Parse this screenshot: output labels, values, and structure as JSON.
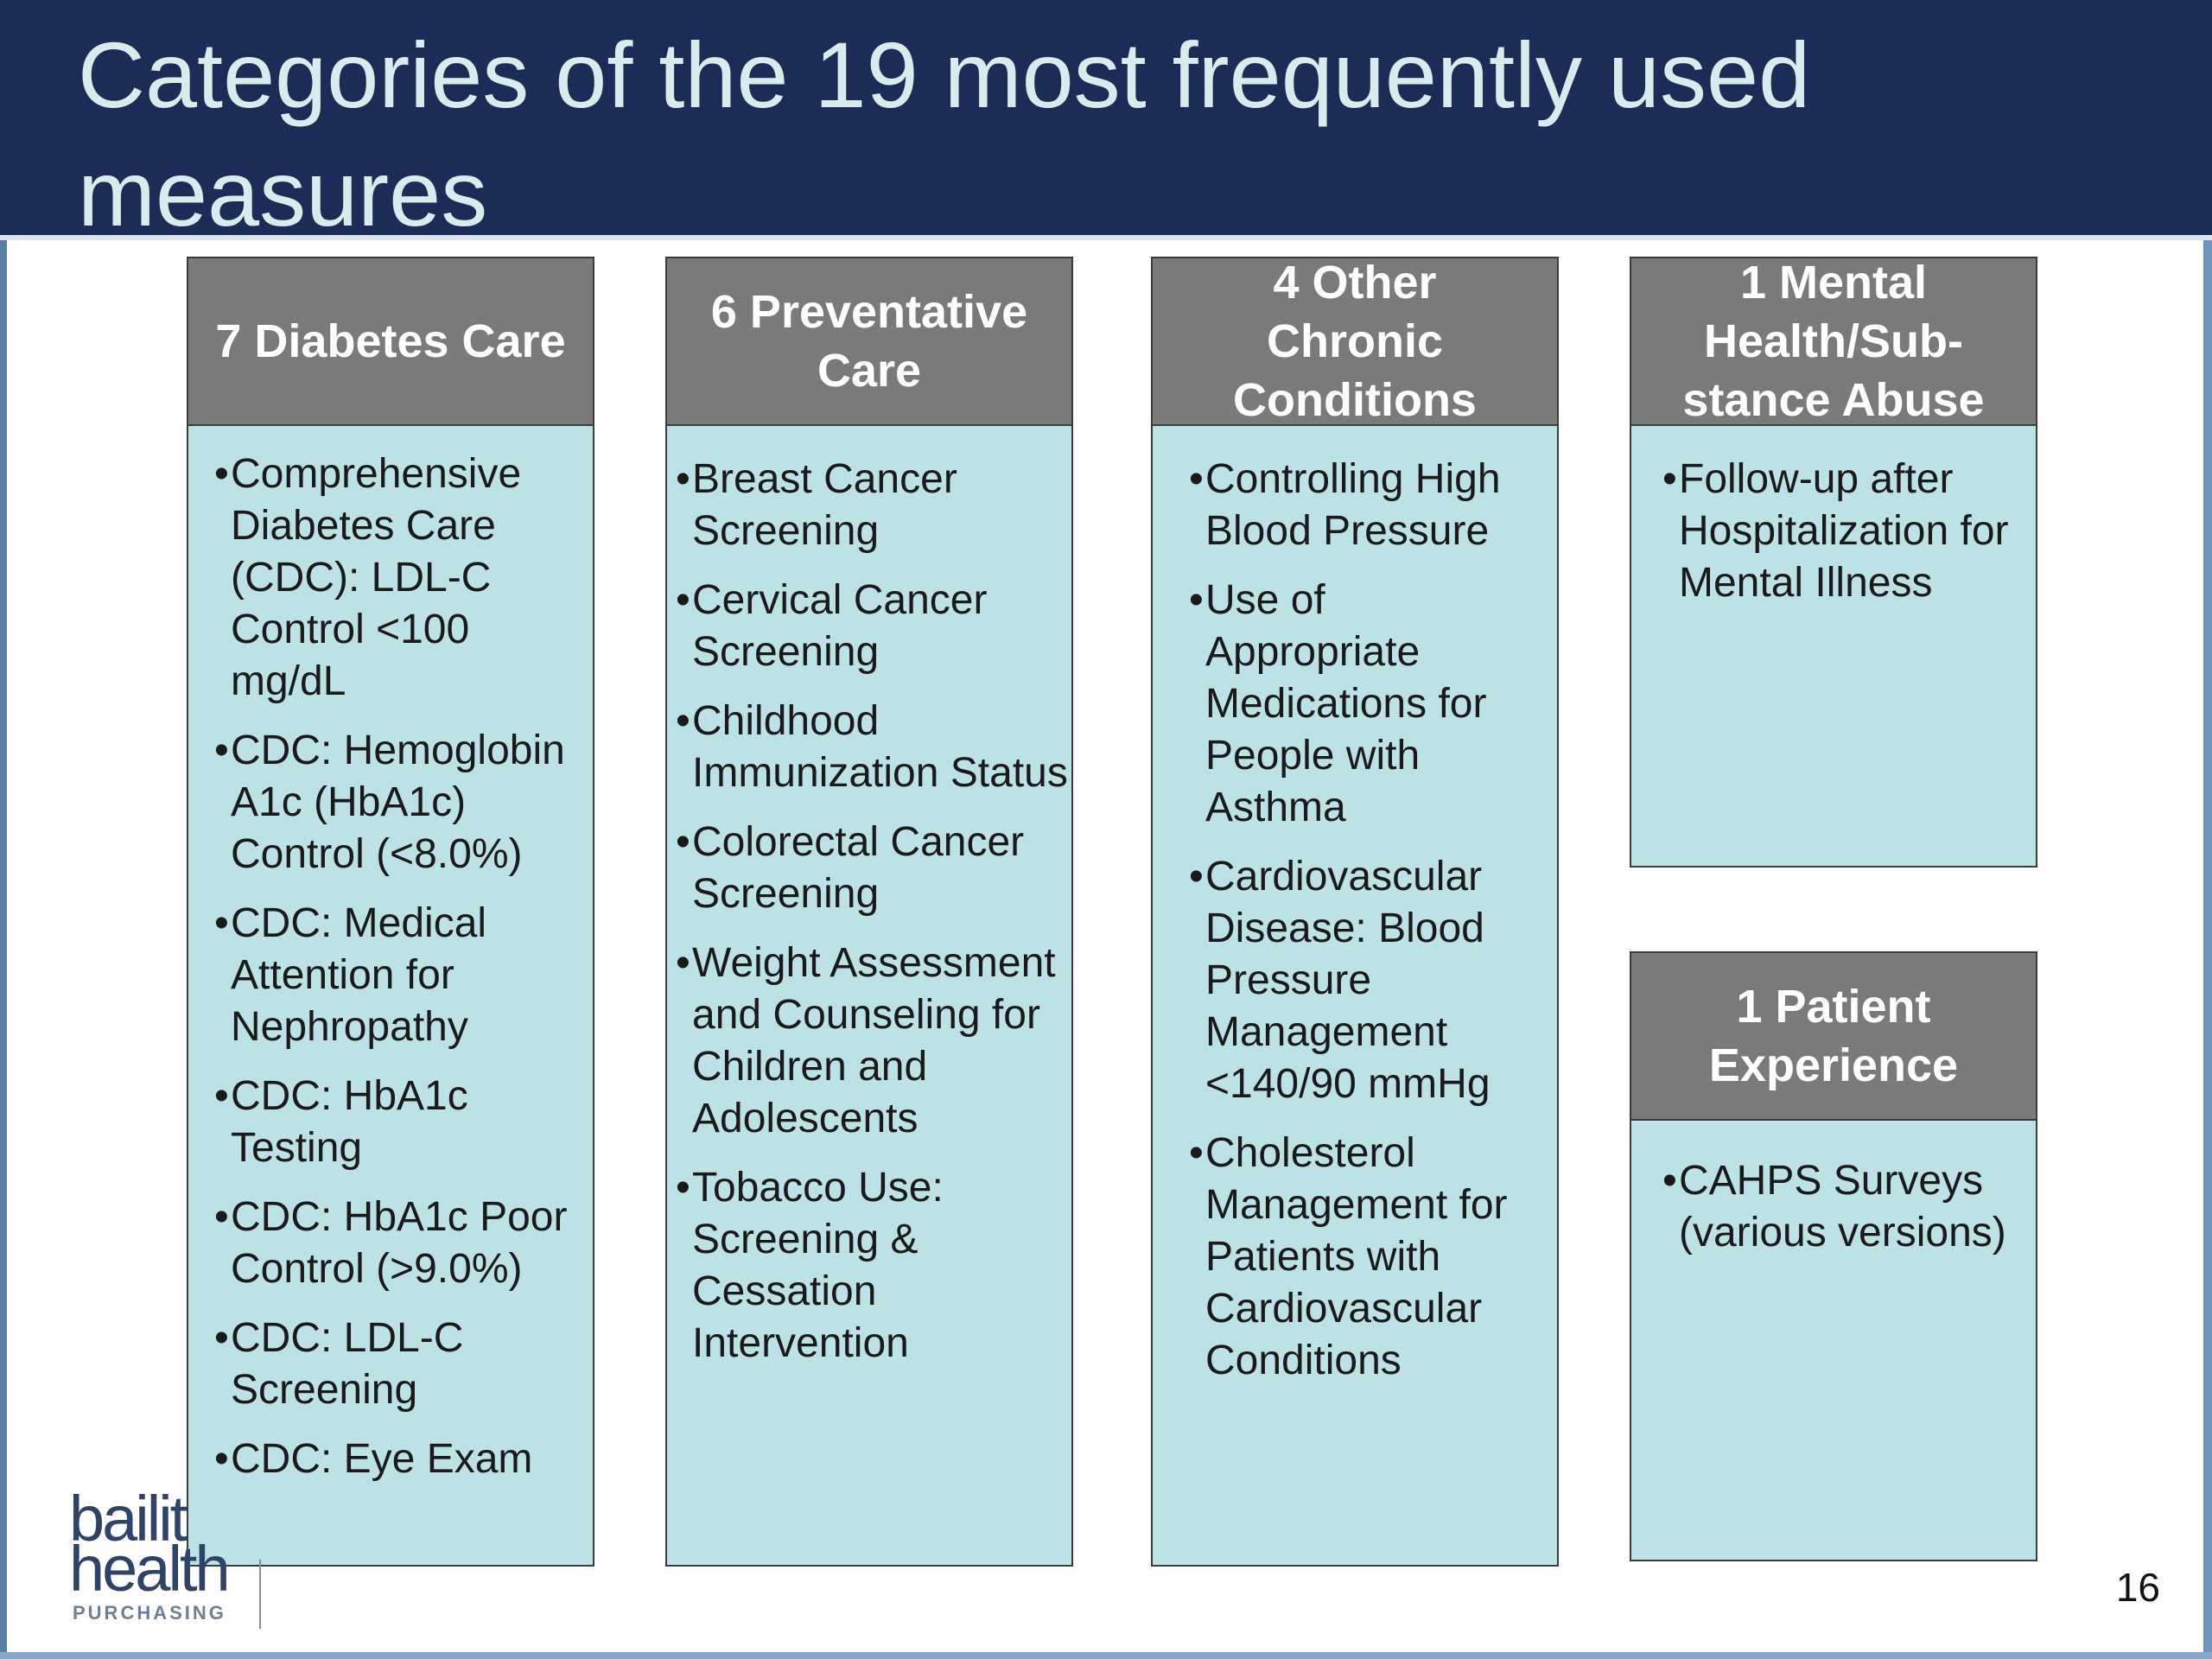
{
  "slide": {
    "title": "Categories of the 19 most frequently used measures",
    "page_number": "16"
  },
  "logo": {
    "line1": "bailit",
    "line2": "health",
    "line3": "PURCHASING"
  },
  "colors": {
    "title_bar": "#1b2d57",
    "title_text": "#d8ecee",
    "header_fill": "#7a7a7a",
    "body_fill": "#bde2e6"
  },
  "categories": [
    {
      "header": "7 Diabetes Care",
      "items": [
        "Comprehensive Diabetes Care (CDC): LDL-C Control <100 mg/dL",
        "CDC: Hemoglobin A1c (HbA1c) Control (<8.0%)",
        "CDC: Medical Attention for Nephropathy",
        "CDC: HbA1c Testing",
        "CDC: HbA1c Poor Control (>9.0%)",
        "CDC: LDL-C Screening",
        "CDC: Eye Exam"
      ]
    },
    {
      "header": "6 Preventative Care",
      "items": [
        "Breast Cancer Screening",
        "Cervical Cancer Screening",
        "Childhood Immunization Status",
        "Colorectal Cancer Screening",
        "Weight Assessment and Counseling for Children and Adolescents",
        "Tobacco Use: Screening & Cessation Intervention"
      ]
    },
    {
      "header": "4 Other Chronic Conditions",
      "items": [
        "Controlling High Blood Pressure",
        "Use of Appropriate Medications for People with Asthma",
        "Cardiovascular Disease: Blood Pressure Management <140/90 mmHg",
        "Cholesterol Management for Patients with Cardiovascular Conditions"
      ]
    },
    {
      "header": "1 Mental Health/Sub-stance Abuse",
      "items": [
        "Follow-up after Hospitalization for Mental Illness"
      ]
    },
    {
      "header": "1 Patient Experience",
      "items": [
        "CAHPS Surveys (various versions)"
      ]
    }
  ]
}
